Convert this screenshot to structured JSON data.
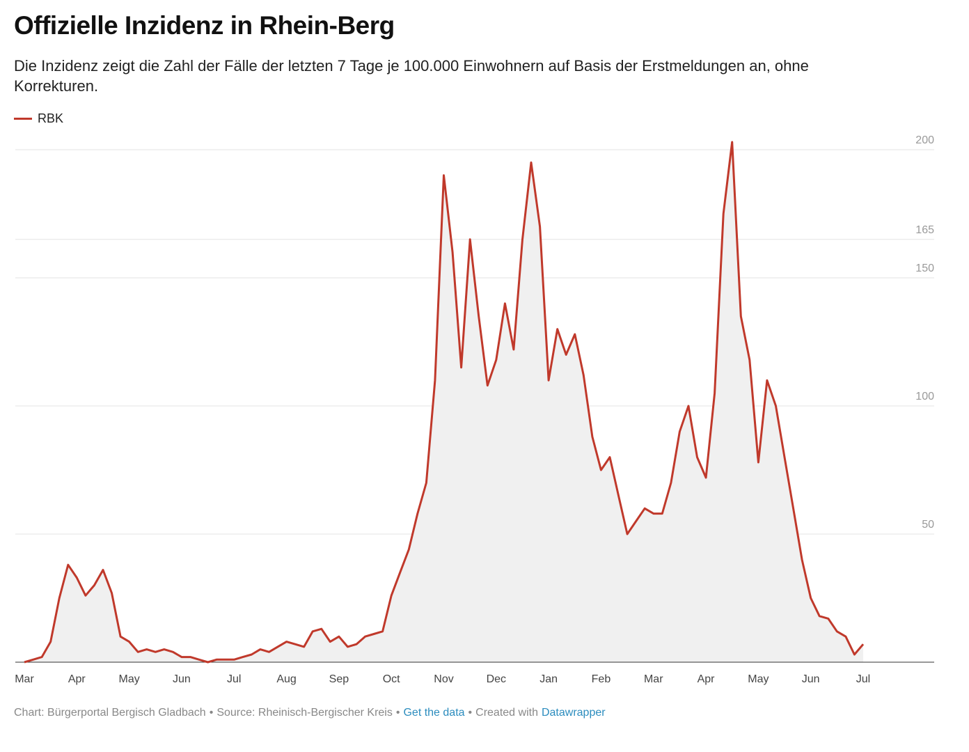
{
  "chart_data": {
    "type": "area-line",
    "title": "Offizielle Inzidenz in Rhein-Berg",
    "subtitle": "Die Inzidenz zeigt die Zahl der Fälle der letzten 7 Tage je 100.000 Einwohnern auf Basis der Erstmeldungen an, ohne Korrekturen.",
    "categories": [
      "Mar",
      null,
      null,
      null,
      null,
      null,
      "Apr",
      null,
      null,
      null,
      null,
      null,
      "May",
      null,
      null,
      null,
      null,
      null,
      "Jun",
      null,
      null,
      null,
      null,
      null,
      "Jul",
      null,
      null,
      null,
      null,
      null,
      "Aug",
      null,
      null,
      null,
      null,
      null,
      "Sep",
      null,
      null,
      null,
      null,
      null,
      "Oct",
      null,
      null,
      null,
      null,
      null,
      "Nov",
      null,
      null,
      null,
      null,
      null,
      "Dec",
      null,
      null,
      null,
      null,
      null,
      "Jan",
      null,
      null,
      null,
      null,
      null,
      "Feb",
      null,
      null,
      null,
      null,
      null,
      "Mar",
      null,
      null,
      null,
      null,
      null,
      "Apr",
      null,
      null,
      null,
      null,
      null,
      "May",
      null,
      null,
      null,
      null,
      null,
      "Jun",
      null,
      null,
      null,
      null,
      null,
      "Jul"
    ],
    "series": [
      {
        "name": "RBK",
        "color": "#c0392b",
        "values": [
          0,
          1,
          2,
          8,
          25,
          38,
          33,
          26,
          30,
          36,
          27,
          10,
          8,
          4,
          5,
          4,
          5,
          4,
          2,
          2,
          1,
          0,
          1,
          1,
          1,
          2,
          3,
          5,
          4,
          6,
          8,
          7,
          6,
          12,
          13,
          8,
          10,
          6,
          7,
          10,
          11,
          12,
          26,
          35,
          44,
          58,
          70,
          110,
          190,
          160,
          115,
          165,
          135,
          108,
          118,
          140,
          122,
          165,
          195,
          170,
          110,
          130,
          120,
          128,
          112,
          88,
          75,
          80,
          65,
          50,
          55,
          60,
          58,
          58,
          70,
          90,
          100,
          80,
          72,
          105,
          175,
          203,
          135,
          118,
          78,
          110,
          100,
          80,
          60,
          40,
          25,
          18,
          17,
          12,
          10,
          3,
          7
        ]
      }
    ],
    "ylim": [
      0,
      200
    ],
    "yticks": [
      50,
      100,
      150,
      165,
      200
    ],
    "grid": true,
    "fill": "#f0f0f0",
    "footer": [
      "Chart: Bürgerportal Bergisch Gladbach",
      "•",
      "Source: Rheinisch-Bergischer Kreis",
      "•",
      "Get the data",
      "•",
      "Created with",
      "Datawrapper"
    ]
  }
}
